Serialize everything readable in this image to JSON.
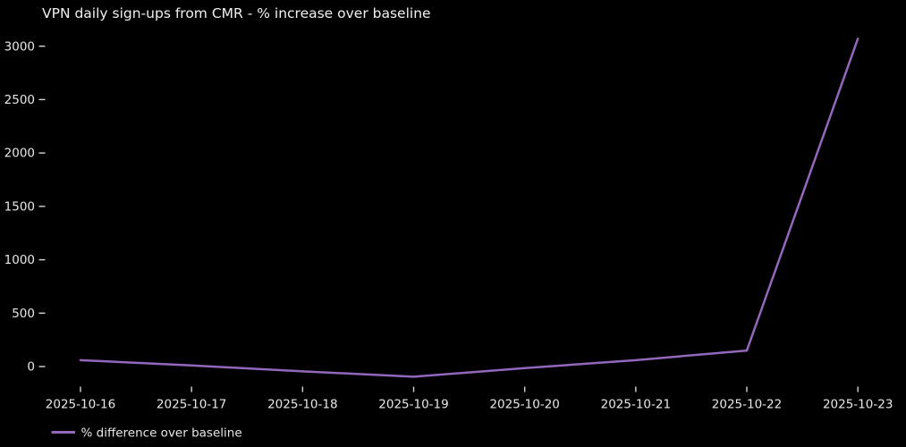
{
  "chart_data": {
    "type": "line",
    "title": "VPN daily sign-ups from CMR - % increase over baseline",
    "x": [
      "2025-10-16",
      "2025-10-17",
      "2025-10-18",
      "2025-10-19",
      "2025-10-20",
      "2025-10-21",
      "2025-10-22",
      "2025-10-23"
    ],
    "series": [
      {
        "name": "% difference over baseline",
        "values": [
          60,
          10,
          -45,
          -95,
          -15,
          60,
          150,
          3070
        ],
        "color": "#9467bd"
      }
    ],
    "xlabel": "",
    "ylabel": "",
    "yticks": [
      0,
      500,
      1000,
      1500,
      2000,
      2500,
      3000
    ],
    "ylim": [
      -260,
      3230
    ],
    "grid": false,
    "legend_position": "lower-left",
    "colors": {
      "background": "#000000",
      "text": "#e8e8e8",
      "title_text": "#f0f0f0",
      "tick": "#d4d4d4"
    }
  }
}
